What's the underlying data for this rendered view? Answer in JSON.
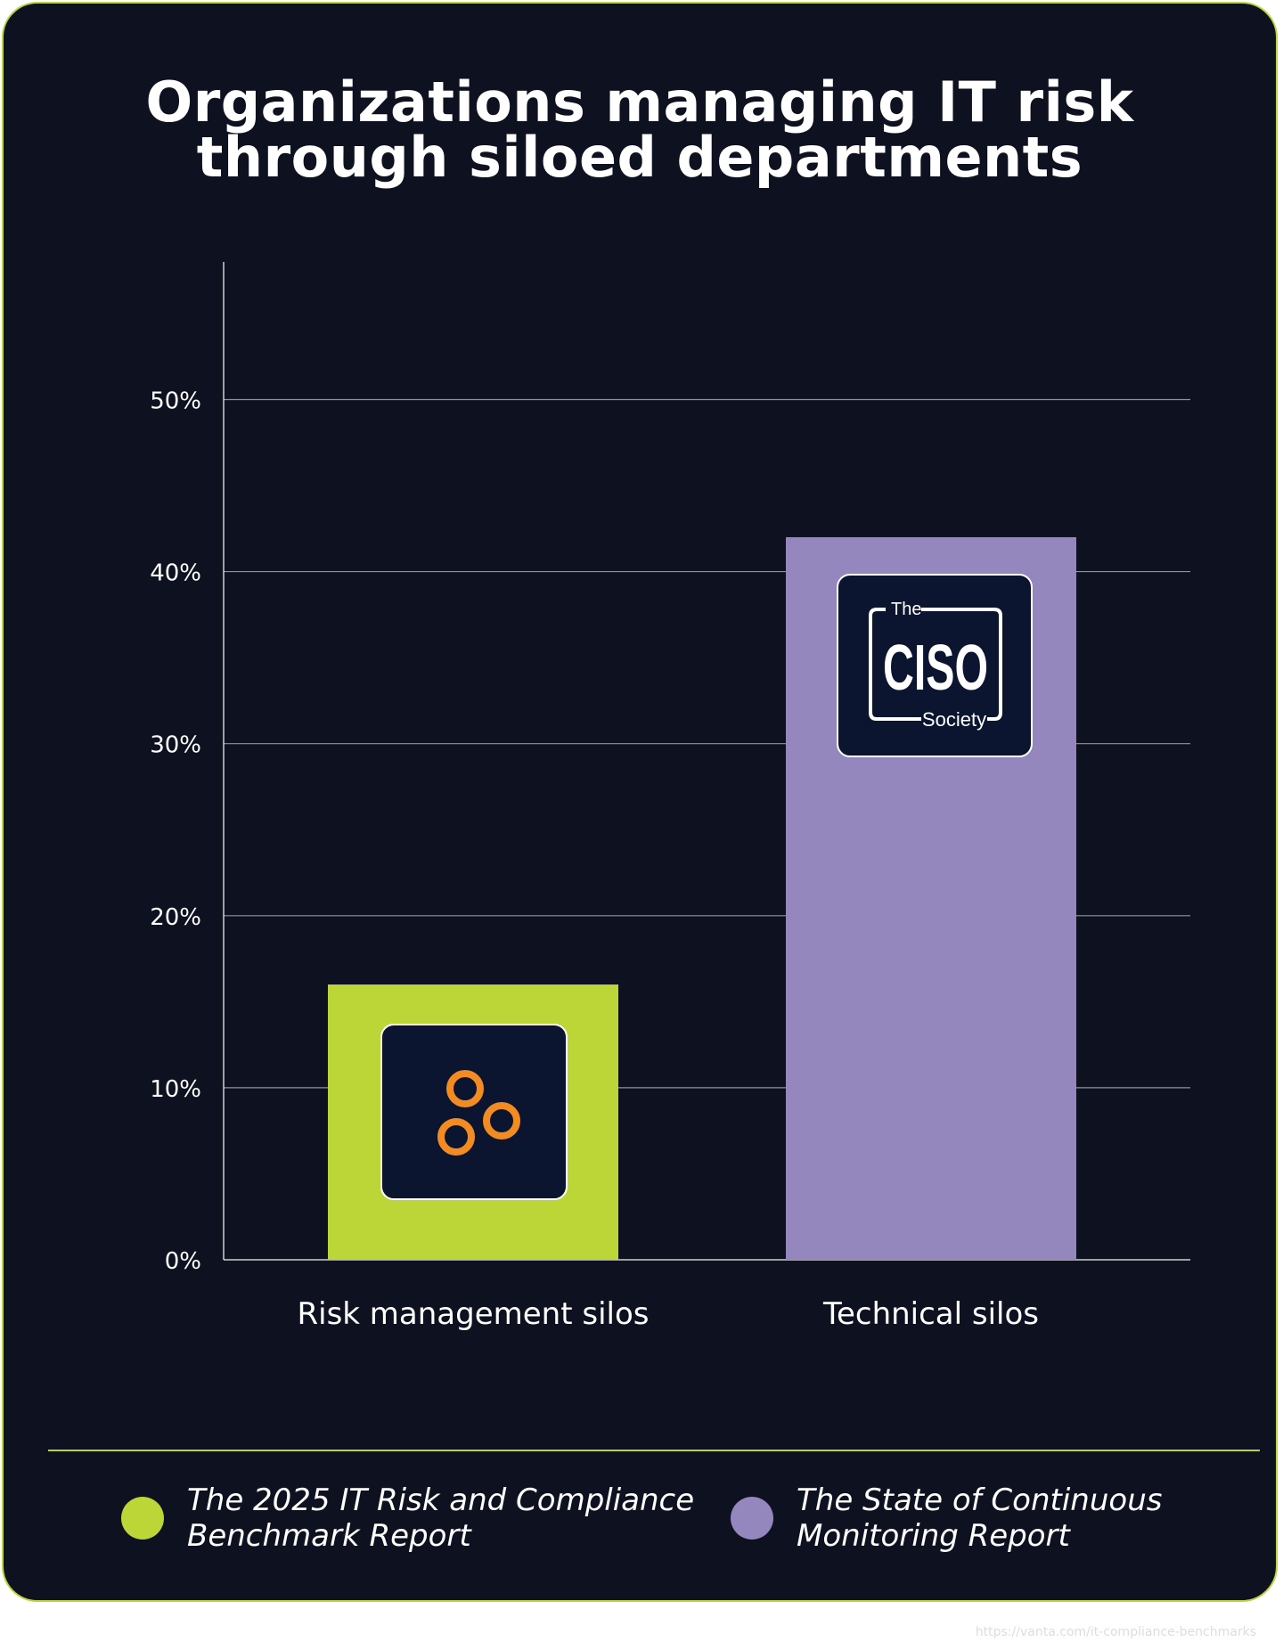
{
  "page": {
    "title_line1": "Organizations managing IT risk",
    "title_line2": "through siloed departments",
    "footer_url": "https://vanta.com/it-compliance-benchmarks"
  },
  "colors": {
    "background": "#0e1120",
    "border": "#b9d53a",
    "green": "#bdd637",
    "purple": "#9487bd",
    "logo_bg": "#0b1530",
    "orange": "#f28b22"
  },
  "legend": [
    {
      "line1": "The 2025 IT Risk and Compliance",
      "line2": "Benchmark Report",
      "color": "#bdd637"
    },
    {
      "line1": "The State of Continuous",
      "line2": "Monitoring Report",
      "color": "#9487bd"
    }
  ],
  "chart_data": {
    "type": "bar",
    "categories": [
      "Risk management silos",
      "Technical silos"
    ],
    "values": [
      16,
      42
    ],
    "colors": [
      "#bdd637",
      "#9487bd"
    ],
    "unit": "%",
    "ylim": [
      0,
      58
    ],
    "yticks": [
      0,
      10,
      20,
      30,
      40,
      50
    ],
    "ytick_labels": [
      "0%",
      "10%",
      "20%",
      "30%",
      "40%",
      "50%"
    ],
    "grid": true,
    "title": "Organizations managing IT risk through siloed departments",
    "xlabel": "",
    "ylabel": "",
    "bar_logos": [
      "orange-circles-logo",
      "ciso-society-logo"
    ],
    "logo_text": {
      "the": "The",
      "ciso": "CISO",
      "society": "Society"
    }
  }
}
